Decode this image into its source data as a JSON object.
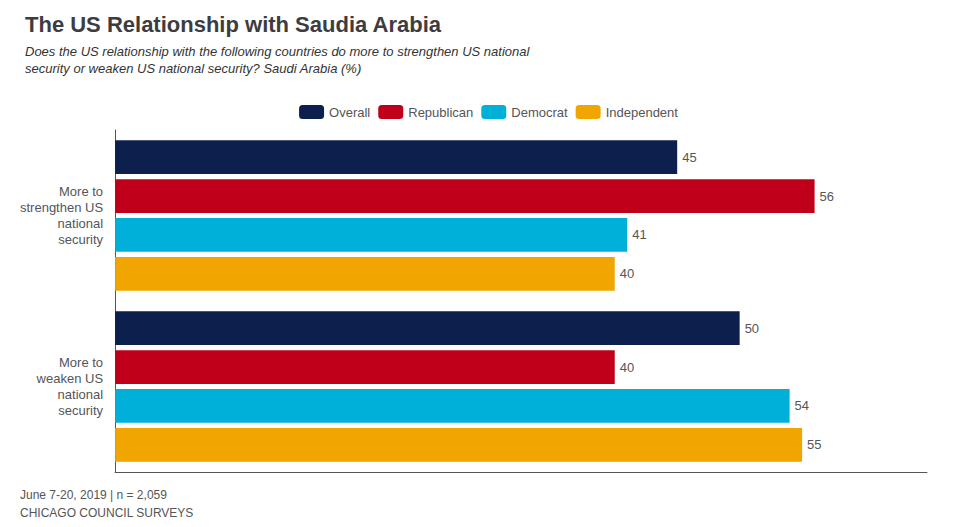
{
  "chart_data": {
    "type": "bar",
    "orientation": "horizontal",
    "title": "The US Relationship with Saudia Arabia",
    "subtitle": "Does the US relationship with the following countries do more to strengthen US national\nsecurity or weaken US national security? Saudi Arabia (%)",
    "categories": [
      "More to\nstrengthen US\nnational\nsecurity",
      "More to\nweaken US\nnational\nsecurity"
    ],
    "series": [
      {
        "name": "Overall",
        "color": "#0d1f4c",
        "values": [
          45,
          50
        ]
      },
      {
        "name": "Republican",
        "color": "#c0001a",
        "values": [
          56,
          40
        ]
      },
      {
        "name": "Democrat",
        "color": "#00b0d8",
        "values": [
          41,
          54
        ]
      },
      {
        "name": "Independent",
        "color": "#f0a500",
        "values": [
          40,
          55
        ]
      }
    ],
    "xlim": [
      0,
      65
    ],
    "grid": false,
    "legend": "top",
    "data_labels": true,
    "tick_labels": "y",
    "annotations": [
      "June 7-20, 2019 | n = 2,059",
      "CHICAGO COUNCIL SURVEYS"
    ]
  }
}
